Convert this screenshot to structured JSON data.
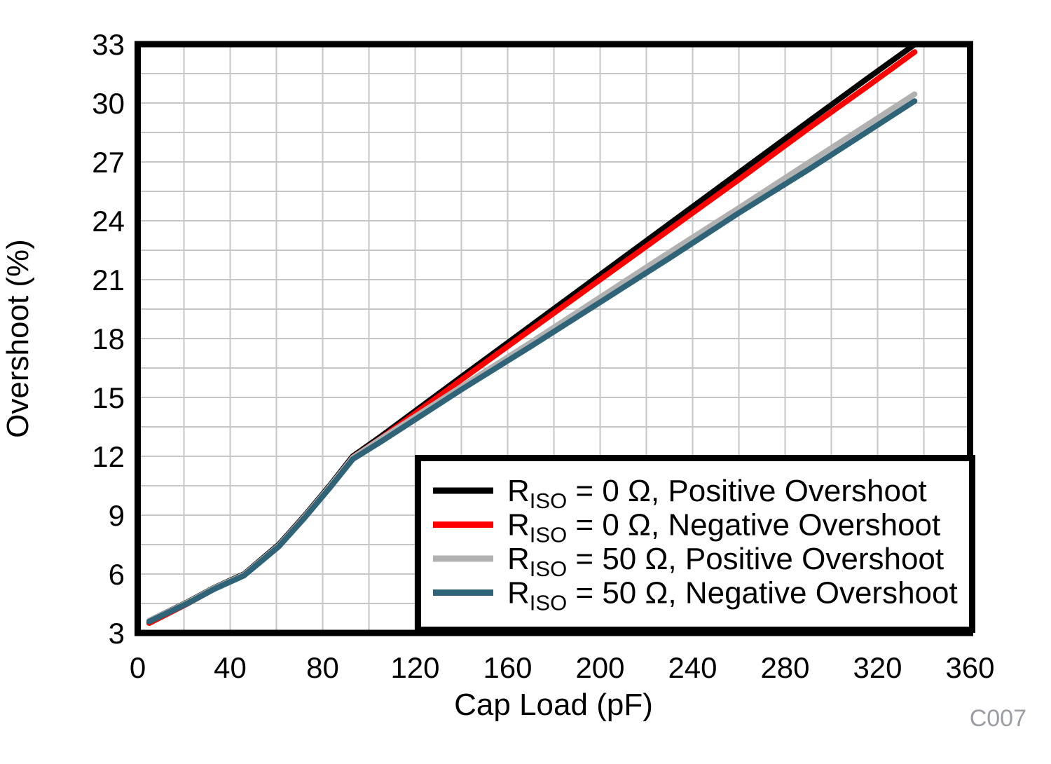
{
  "figure_code": "C007",
  "chart_data": {
    "type": "line",
    "title": "",
    "xlabel": "Cap Load (pF)",
    "ylabel": "Overshoot (%)",
    "xlim": [
      0,
      360
    ],
    "ylim": [
      3,
      33
    ],
    "x_ticks": [
      0,
      40,
      80,
      120,
      160,
      200,
      240,
      280,
      320,
      360
    ],
    "y_ticks": [
      3,
      6,
      9,
      12,
      15,
      18,
      21,
      24,
      27,
      30,
      33
    ],
    "grid": {
      "visible": true,
      "x_step": 20,
      "y_step": 1.5,
      "color": "#c6c6c6"
    },
    "axis_color": "#000000",
    "background": "#ffffff",
    "legend_position": "bottom-right",
    "tick_label_color": "#000000",
    "figure_code_color": "#9a9ea3",
    "series": [
      {
        "label_prefix": "R",
        "label_sub": "ISO",
        "label_rest": " = 0 Ω, Positive Overshoot",
        "color": "#000000",
        "width": 8,
        "x": [
          5,
          22,
          33,
          46,
          61,
          72,
          83,
          93,
          105,
          140,
          170,
          200,
          230,
          260,
          290,
          315,
          336
        ],
        "y": [
          3.62,
          4.6,
          5.3,
          6.0,
          7.5,
          8.95,
          10.5,
          12.0,
          13.0,
          16.05,
          18.65,
          21.25,
          23.85,
          26.45,
          29.05,
          31.2,
          32.98
        ]
      },
      {
        "label_prefix": "R",
        "label_sub": "ISO",
        "label_rest": " = 0 Ω, Negative Overshoot",
        "color": "#ff0000",
        "width": 8,
        "x": [
          5,
          22,
          33,
          46,
          61,
          72,
          83,
          93,
          105,
          140,
          170,
          200,
          230,
          260,
          290,
          315,
          336
        ],
        "y": [
          3.5,
          4.52,
          5.24,
          5.95,
          7.44,
          8.9,
          10.44,
          11.94,
          12.9,
          15.9,
          18.45,
          21.0,
          23.55,
          26.1,
          28.7,
          30.8,
          32.6
        ]
      },
      {
        "label_prefix": "R",
        "label_sub": "ISO",
        "label_rest": " = 50 Ω, Positive Overshoot",
        "color": "#b1b1b1",
        "width": 8,
        "x": [
          5,
          22,
          33,
          46,
          61,
          72,
          83,
          93,
          105,
          140,
          170,
          200,
          230,
          260,
          290,
          315,
          336
        ],
        "y": [
          3.62,
          4.58,
          5.28,
          5.97,
          7.45,
          8.9,
          10.45,
          11.93,
          12.88,
          15.55,
          17.8,
          20.1,
          22.4,
          24.65,
          26.95,
          28.85,
          30.45
        ]
      },
      {
        "label_prefix": "R",
        "label_sub": "ISO",
        "label_rest": " = 50 Ω, Negative Overshoot",
        "color": "#2e6378",
        "width": 8,
        "x": [
          5,
          22,
          33,
          46,
          61,
          72,
          83,
          93,
          105,
          140,
          170,
          200,
          230,
          260,
          290,
          315,
          336
        ],
        "y": [
          3.58,
          4.53,
          5.23,
          5.92,
          7.4,
          8.84,
          10.38,
          11.85,
          12.73,
          15.4,
          17.6,
          19.85,
          22.1,
          24.4,
          26.6,
          28.5,
          30.1
        ]
      }
    ]
  }
}
